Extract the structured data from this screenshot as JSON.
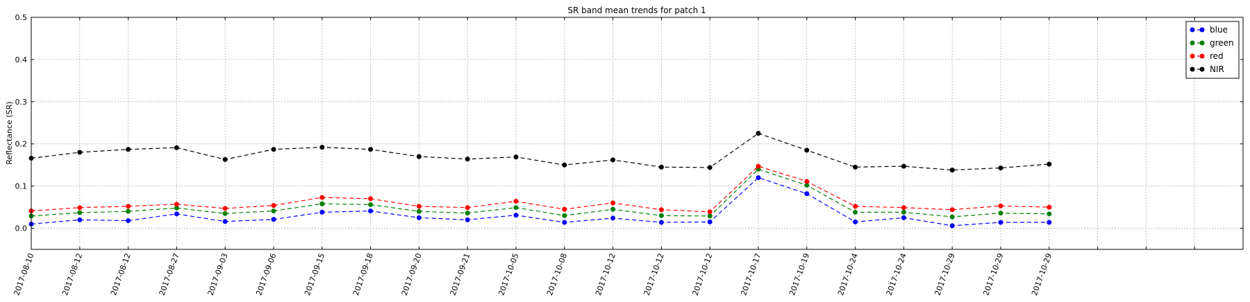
{
  "chart_data": {
    "type": "line",
    "title": "SR band mean trends for patch 1",
    "xlabel": "",
    "ylabel": "Reflectance (SR)",
    "categories": [
      "2017-08-10",
      "2017-08-12",
      "2017-08-12",
      "2017-08-27",
      "2017-09-03",
      "2017-09-06",
      "2017-09-15",
      "2017-09-18",
      "2017-09-20",
      "2017-09-21",
      "2017-10-05",
      "2017-10-08",
      "2017-10-12",
      "2017-10-12",
      "2017-10-12",
      "2017-10-17",
      "2017-10-19",
      "2017-10-24",
      "2017-10-24",
      "2017-10-29",
      "2017-10-29",
      "2017-10-29"
    ],
    "x_range": [
      0,
      25
    ],
    "ylim": [
      -0.05,
      0.5
    ],
    "yticks": [
      0.0,
      0.1,
      0.2,
      0.3,
      0.4,
      0.5
    ],
    "ytick_labels": [
      "0.0",
      "0.1",
      "0.2",
      "0.3",
      "0.4",
      "0.5"
    ],
    "grid": true,
    "legend_position": "top-right",
    "series": [
      {
        "name": "blue",
        "color": "#0000ff",
        "values": [
          0.01,
          0.02,
          0.018,
          0.034,
          0.016,
          0.021,
          0.038,
          0.041,
          0.025,
          0.02,
          0.031,
          0.014,
          0.024,
          0.014,
          0.015,
          0.12,
          0.082,
          0.015,
          0.025,
          0.006,
          0.014,
          0.014
        ]
      },
      {
        "name": "green",
        "color": "#008000",
        "values": [
          0.029,
          0.037,
          0.04,
          0.048,
          0.035,
          0.041,
          0.058,
          0.056,
          0.04,
          0.036,
          0.049,
          0.03,
          0.045,
          0.03,
          0.029,
          0.14,
          0.102,
          0.038,
          0.038,
          0.027,
          0.036,
          0.034
        ]
      },
      {
        "name": "red",
        "color": "#ff0000",
        "values": [
          0.041,
          0.049,
          0.052,
          0.057,
          0.047,
          0.054,
          0.073,
          0.07,
          0.052,
          0.049,
          0.064,
          0.045,
          0.06,
          0.044,
          0.039,
          0.147,
          0.111,
          0.052,
          0.049,
          0.044,
          0.053,
          0.05
        ]
      },
      {
        "name": "NIR",
        "color": "#000000",
        "values": [
          0.166,
          0.18,
          0.187,
          0.191,
          0.163,
          0.187,
          0.192,
          0.187,
          0.17,
          0.164,
          0.169,
          0.15,
          0.162,
          0.145,
          0.144,
          0.225,
          0.185,
          0.145,
          0.147,
          0.138,
          0.143,
          0.152
        ]
      }
    ]
  }
}
